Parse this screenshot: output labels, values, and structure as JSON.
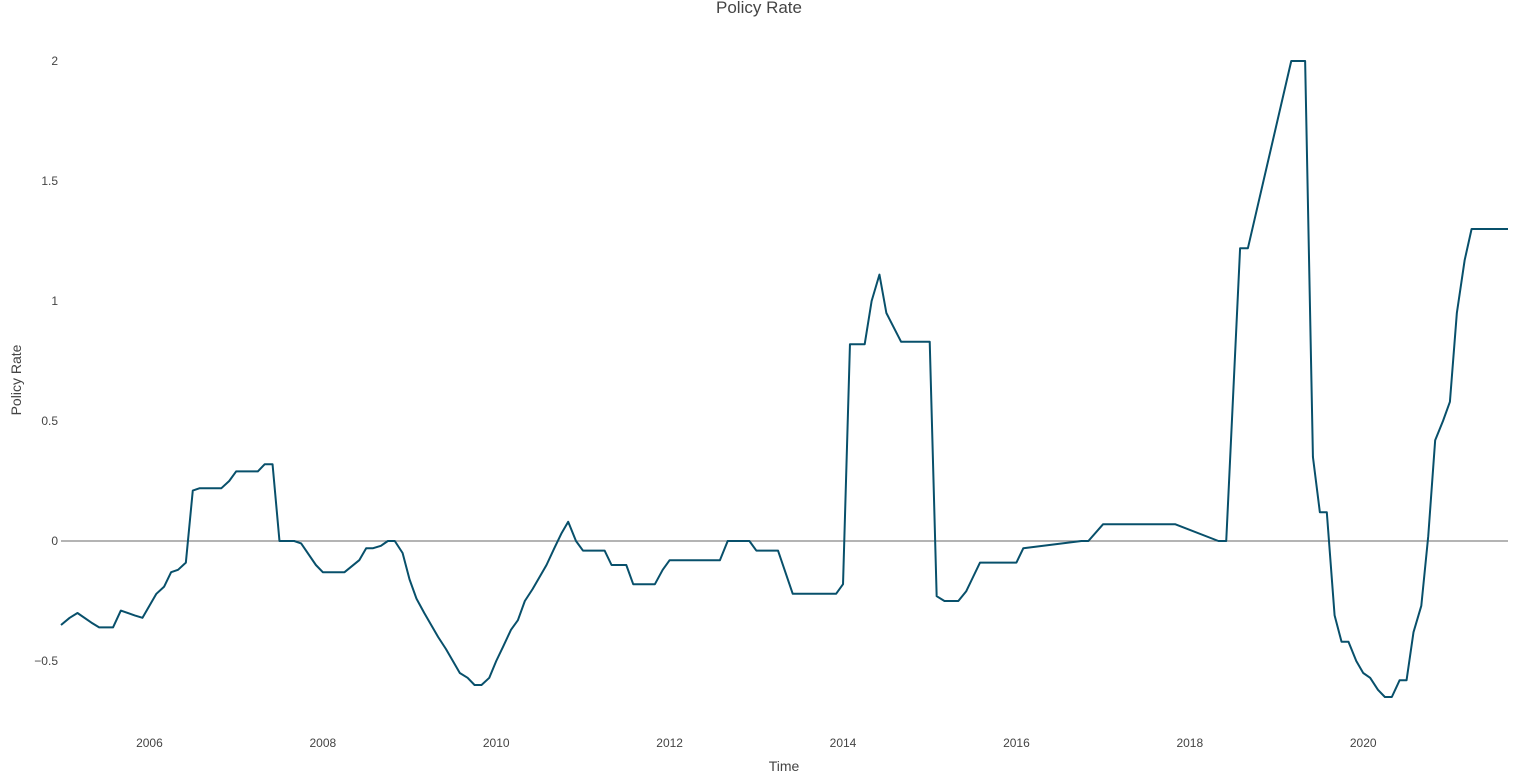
{
  "chart_data": {
    "type": "line",
    "title": "Policy Rate",
    "xlabel": "Time",
    "ylabel": "Policy Rate",
    "xlim": [
      2004.98,
      2021.67
    ],
    "ylim": [
      -0.8,
      2.2
    ],
    "x_ticks": [
      2006,
      2008,
      2010,
      2012,
      2014,
      2016,
      2018,
      2020
    ],
    "x_tick_labels": [
      "2006",
      "2008",
      "2010",
      "2012",
      "2014",
      "2016",
      "2018",
      "2020"
    ],
    "y_ticks": [
      2,
      1.5,
      1,
      0.5,
      0,
      -0.5
    ],
    "y_tick_labels": [
      "2",
      "1.5",
      "1",
      "0.5",
      "0",
      "−0.5"
    ],
    "grid": false,
    "zero_line": true,
    "line_color": "#08506b",
    "zero_line_color": "#888888",
    "series": [
      {
        "name": "Policy Rate",
        "x": [
          2004.98,
          2005.08,
          2005.17,
          2005.33,
          2005.42,
          2005.58,
          2005.67,
          2005.83,
          2005.92,
          2006.0,
          2006.08,
          2006.17,
          2006.25,
          2006.33,
          2006.42,
          2006.5,
          2006.58,
          2006.67,
          2006.83,
          2006.92,
          2007.0,
          2007.08,
          2007.17,
          2007.25,
          2007.33,
          2007.42,
          2007.5,
          2007.58,
          2007.67,
          2007.75,
          2007.92,
          2008.0,
          2008.17,
          2008.25,
          2008.42,
          2008.5,
          2008.58,
          2008.67,
          2008.75,
          2008.83,
          2008.92,
          2009.0,
          2009.08,
          2009.17,
          2009.25,
          2009.33,
          2009.42,
          2009.5,
          2009.58,
          2009.67,
          2009.75,
          2009.83,
          2009.92,
          2010.0,
          2010.08,
          2010.17,
          2010.25,
          2010.33,
          2010.42,
          2010.5,
          2010.58,
          2010.67,
          2010.75,
          2010.83,
          2010.92,
          2011.0,
          2011.08,
          2011.25,
          2011.33,
          2011.5,
          2011.58,
          2011.83,
          2011.92,
          2012.0,
          2012.58,
          2012.67,
          2012.92,
          2013.0,
          2013.25,
          2013.42,
          2013.5,
          2013.92,
          2014.0,
          2014.08,
          2014.25,
          2014.33,
          2014.42,
          2014.5,
          2014.67,
          2014.92,
          2015.0,
          2015.08,
          2015.17,
          2015.33,
          2015.42,
          2015.5,
          2015.58,
          2015.67,
          2015.92,
          2016.0,
          2016.08,
          2016.75,
          2016.83,
          2017.0,
          2017.5,
          2017.75,
          2017.83,
          2018.33,
          2018.42,
          2018.58,
          2018.67,
          2019.17,
          2019.33,
          2019.42,
          2019.5,
          2019.58,
          2019.67,
          2019.75,
          2019.83,
          2019.92,
          2020.0,
          2020.08,
          2020.17,
          2020.25,
          2020.33,
          2020.42,
          2020.5,
          2020.58,
          2020.67,
          2020.75,
          2020.83,
          2020.92,
          2021.0,
          2021.08,
          2021.17,
          2021.25,
          2021.33,
          2021.42,
          2021.67
        ],
        "y": [
          -0.35,
          -0.32,
          -0.3,
          -0.34,
          -0.36,
          -0.36,
          -0.29,
          -0.31,
          -0.32,
          -0.27,
          -0.22,
          -0.19,
          -0.13,
          -0.12,
          -0.09,
          0.21,
          0.22,
          0.22,
          0.22,
          0.25,
          0.29,
          0.29,
          0.29,
          0.29,
          0.32,
          0.32,
          0.0,
          0.0,
          0.0,
          -0.01,
          -0.1,
          -0.13,
          -0.13,
          -0.13,
          -0.08,
          -0.03,
          -0.03,
          -0.02,
          0.0,
          0.0,
          -0.05,
          -0.16,
          -0.24,
          -0.3,
          -0.35,
          -0.4,
          -0.45,
          -0.5,
          -0.55,
          -0.57,
          -0.6,
          -0.6,
          -0.57,
          -0.5,
          -0.44,
          -0.37,
          -0.33,
          -0.25,
          -0.2,
          -0.15,
          -0.1,
          -0.03,
          0.03,
          0.08,
          0.0,
          -0.04,
          -0.04,
          -0.04,
          -0.1,
          -0.1,
          -0.18,
          -0.18,
          -0.12,
          -0.08,
          -0.08,
          0.0,
          0.0,
          -0.04,
          -0.04,
          -0.22,
          -0.22,
          -0.22,
          -0.18,
          0.82,
          0.82,
          1.0,
          1.11,
          0.95,
          0.83,
          0.83,
          0.83,
          -0.23,
          -0.25,
          -0.25,
          -0.21,
          -0.15,
          -0.09,
          -0.09,
          -0.09,
          -0.09,
          -0.03,
          0.0,
          0.0,
          0.07,
          0.07,
          0.07,
          0.07,
          0.0,
          0.0,
          1.22,
          1.22,
          2.0,
          2.0,
          0.35,
          0.12,
          0.12,
          -0.31,
          -0.42,
          -0.42,
          -0.5,
          -0.55,
          -0.57,
          -0.62,
          -0.65,
          -0.65,
          -0.58,
          -0.58,
          -0.38,
          -0.27,
          0.02,
          0.42,
          0.5,
          0.58,
          0.95,
          1.17,
          1.3,
          1.3,
          1.3,
          1.3
        ]
      }
    ]
  }
}
